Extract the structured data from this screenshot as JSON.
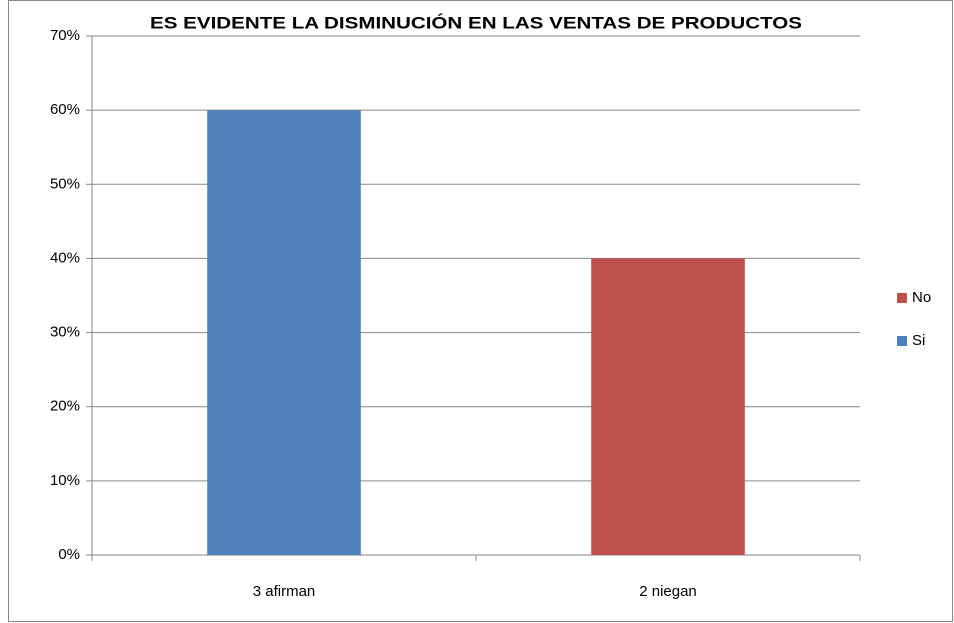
{
  "chart_data": {
    "type": "bar",
    "stacked": true,
    "title": "ES EVIDENTE LA DISMINUCIÓN EN LAS VENTAS DE PRODUCTOS",
    "categories": [
      "3 afirman",
      "2 niegan"
    ],
    "series": [
      {
        "name": "No",
        "color": "#c0504d",
        "values": [
          null,
          40
        ]
      },
      {
        "name": "Si",
        "color": "#4f81bd",
        "values": [
          60,
          null
        ]
      }
    ],
    "ylim": [
      0,
      70
    ],
    "yticks": [
      {
        "value": 0,
        "label": "0%"
      },
      {
        "value": 10,
        "label": "10%"
      },
      {
        "value": 20,
        "label": "20%"
      },
      {
        "value": 30,
        "label": "30%"
      },
      {
        "value": 40,
        "label": "40%"
      },
      {
        "value": 50,
        "label": "50%"
      },
      {
        "value": 60,
        "label": "60%"
      },
      {
        "value": 70,
        "label": "70%"
      }
    ],
    "grid": true,
    "legend": "right"
  }
}
